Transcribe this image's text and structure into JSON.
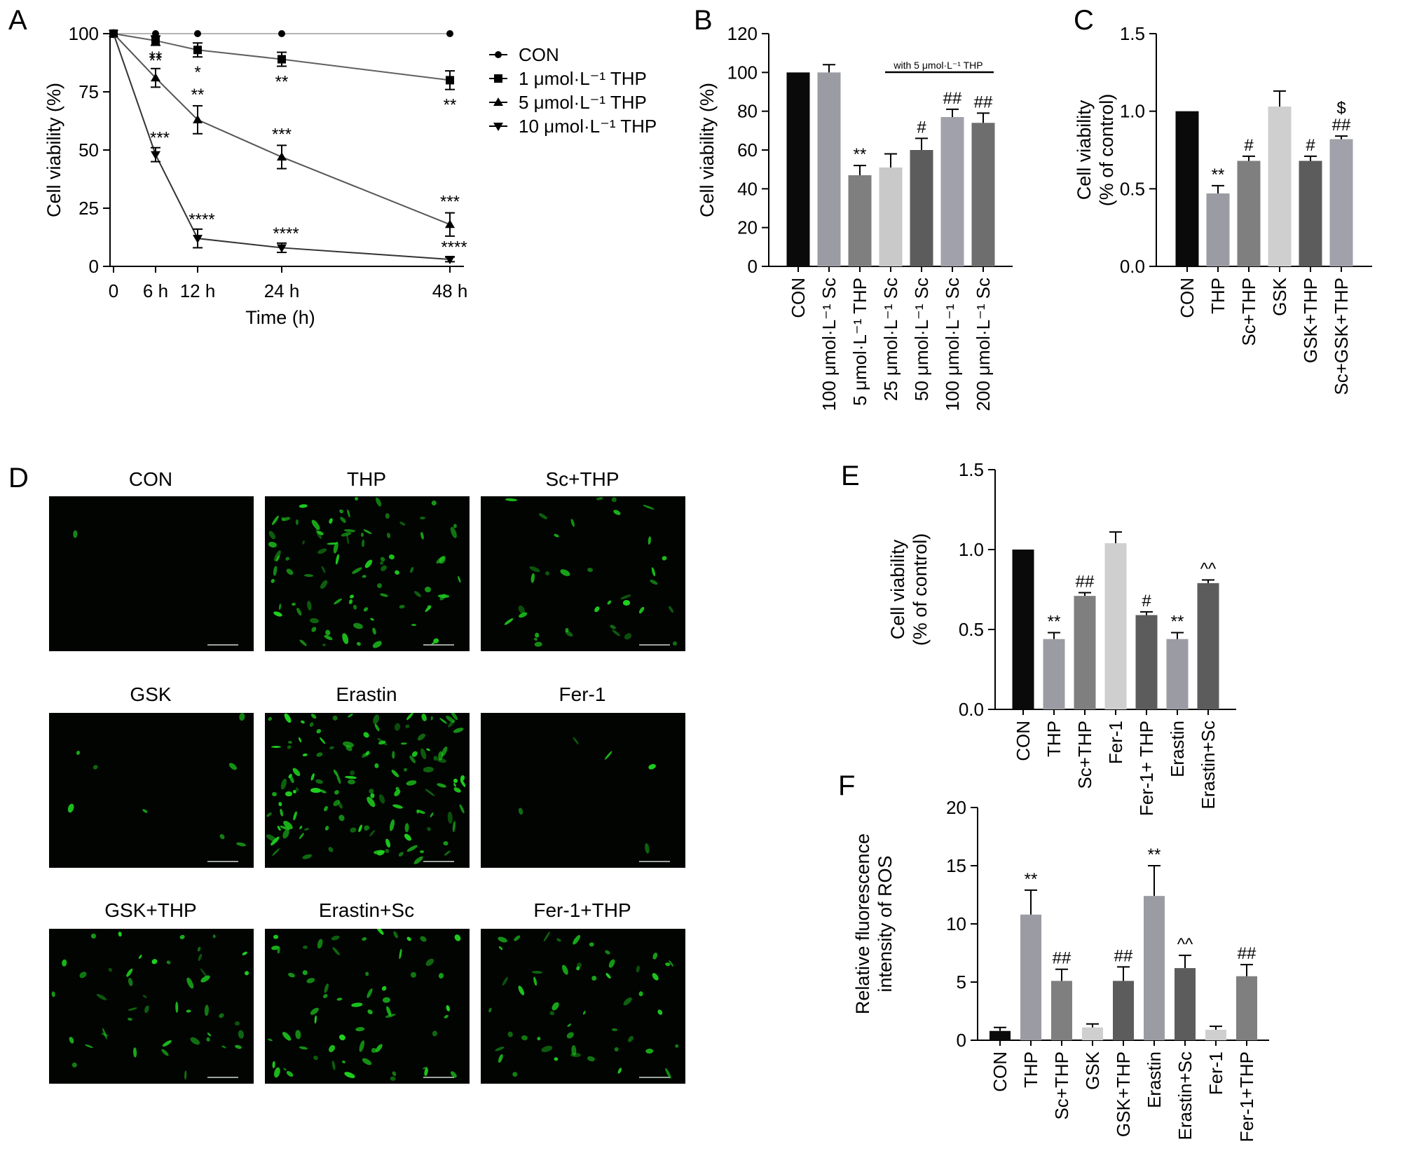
{
  "colors": {
    "axis": "#000000",
    "green_cell": "#1fd21f",
    "micro_bg": "#010401"
  },
  "chart_data": [
    {
      "id": "A",
      "panel_label": "A",
      "type": "line",
      "xlabel": "Time (h)",
      "ylabel": "Cell viability (%)",
      "x": [
        0,
        6,
        12,
        24,
        48
      ],
      "xticklabels": [
        "0",
        "6 h",
        "12 h",
        "24 h",
        "48 h"
      ],
      "ylim": [
        0,
        100
      ],
      "yticks": [
        0,
        25,
        50,
        75,
        100
      ],
      "series": [
        {
          "name": "CON",
          "marker": "circle",
          "values": [
            100,
            100,
            100,
            100,
            100
          ],
          "err": [
            0,
            0,
            0,
            0,
            0
          ],
          "sig": [
            "",
            "",
            "",
            "",
            ""
          ]
        },
        {
          "name": "1 μmol·L⁻¹ THP",
          "marker": "square",
          "values": [
            100,
            97,
            93,
            89,
            80
          ],
          "err": [
            0,
            2,
            3,
            3,
            4
          ],
          "sig": [
            "",
            "**",
            "*",
            "**",
            "**"
          ]
        },
        {
          "name": "5 μmol·L⁻¹ THP",
          "marker": "triangle-up",
          "values": [
            100,
            81,
            63,
            47,
            18
          ],
          "err": [
            0,
            4,
            6,
            5,
            5
          ],
          "sig": [
            "",
            "**",
            "**",
            "***",
            "***"
          ]
        },
        {
          "name": "10 μmol·L⁻¹ THP",
          "marker": "triangle-down",
          "values": [
            100,
            48,
            12,
            8,
            3
          ],
          "err": [
            0,
            3,
            4,
            2,
            1
          ],
          "sig": [
            "",
            "***",
            "****",
            "****",
            "****"
          ]
        }
      ]
    },
    {
      "id": "B",
      "panel_label": "B",
      "type": "bar",
      "ylabel": "Cell viability (%)",
      "ylim": [
        0,
        120
      ],
      "yticks": [
        0,
        20,
        40,
        60,
        80,
        100,
        120
      ],
      "categories": [
        "CON",
        "100 μmol·L⁻¹ Sc",
        "5 μmol·L⁻¹ THP",
        "25 μmol·L⁻¹ Sc",
        "50 μmol·L⁻¹ Sc",
        "100 μmol·L⁻¹ Sc",
        "200 μmol·L⁻¹ Sc"
      ],
      "values": [
        100,
        100,
        47,
        51,
        60,
        77,
        74
      ],
      "err": [
        0,
        4,
        5,
        7,
        6,
        4,
        5
      ],
      "sig": [
        "",
        "",
        "**",
        "",
        "#",
        "##",
        "##"
      ],
      "bar_colors": [
        "#0a0a0a",
        "#9b9ba3",
        "#7f7f7f",
        "#c9c9c9",
        "#5c5c5c",
        "#a1a1ab",
        "#6e6e6e"
      ],
      "annotation": "with 5 μmol·L⁻¹ THP"
    },
    {
      "id": "C",
      "panel_label": "C",
      "type": "bar",
      "ylabel": "Cell viability",
      "ylabel2": "(% of control)",
      "ylim": [
        0,
        1.5
      ],
      "yticks": [
        0.0,
        0.5,
        1.0,
        1.5
      ],
      "categories": [
        "CON",
        "THP",
        "Sc+THP",
        "GSK",
        "GSK+THP",
        "Sc+GSK+THP"
      ],
      "values": [
        1.0,
        0.47,
        0.68,
        1.03,
        0.68,
        0.82
      ],
      "err": [
        0,
        0.05,
        0.03,
        0.1,
        0.03,
        0.02
      ],
      "sig": [
        "",
        "**",
        "#",
        "",
        "#",
        "##"
      ],
      "sig2": [
        "",
        "",
        "",
        "",
        "",
        "$"
      ],
      "bar_colors": [
        "#0a0a0a",
        "#9b9ba3",
        "#7f7f7f",
        "#cfcfcf",
        "#5c5c5c",
        "#a1a1ab"
      ]
    },
    {
      "id": "E",
      "panel_label": "E",
      "type": "bar",
      "ylabel": "Cell viability",
      "ylabel2": "(% of control)",
      "ylim": [
        0,
        1.5
      ],
      "yticks": [
        0.0,
        0.5,
        1.0,
        1.5
      ],
      "categories": [
        "CON",
        "THP",
        "Sc+THP",
        "Fer-1",
        "Fer-1+ THP",
        "Erastin",
        "Erastin+Sc"
      ],
      "values": [
        1.0,
        0.44,
        0.71,
        1.04,
        0.59,
        0.44,
        0.79
      ],
      "err": [
        0,
        0.04,
        0.02,
        0.07,
        0.02,
        0.04,
        0.02
      ],
      "sig": [
        "",
        "**",
        "##",
        "",
        "#",
        "**",
        "^^"
      ],
      "bar_colors": [
        "#0a0a0a",
        "#9b9ba3",
        "#7f7f7f",
        "#cfcfcf",
        "#5c5c5c",
        "#9b9ba3",
        "#5c5c5c"
      ]
    },
    {
      "id": "F",
      "panel_label": "F",
      "type": "bar",
      "ylabel": "Relative fluorescence",
      "ylabel2": "intensity of ROS",
      "ylim": [
        0,
        20
      ],
      "yticks": [
        0,
        5,
        10,
        15,
        20
      ],
      "categories": [
        "CON",
        "THP",
        "Sc+THP",
        "GSK",
        "GSK+THP",
        "Erastin",
        "Erastin+Sc",
        "Fer-1",
        "Fer-1+THP"
      ],
      "values": [
        0.8,
        10.8,
        5.1,
        1.1,
        5.1,
        12.4,
        6.2,
        0.9,
        5.5
      ],
      "err": [
        0.3,
        2.1,
        1.0,
        0.3,
        1.2,
        2.6,
        1.1,
        0.3,
        1.0
      ],
      "sig": [
        "",
        "**",
        "##",
        "",
        "##",
        "**",
        "^^",
        "",
        "##"
      ],
      "bar_colors": [
        "#0a0a0a",
        "#9b9ba3",
        "#7f7f7f",
        "#cfcfcf",
        "#5c5c5c",
        "#9b9ba3",
        "#5c5c5c",
        "#cfcfcf",
        "#7f7f7f"
      ]
    }
  ],
  "panel_D": {
    "label": "D",
    "images": [
      {
        "title": "CON",
        "cells": 1
      },
      {
        "title": "THP",
        "cells": 90
      },
      {
        "title": "Sc+THP",
        "cells": 35
      },
      {
        "title": "GSK",
        "cells": 8
      },
      {
        "title": "Erastin",
        "cells": 130
      },
      {
        "title": "Fer-1",
        "cells": 5
      },
      {
        "title": "GSK+THP",
        "cells": 45
      },
      {
        "title": "Erastin+Sc",
        "cells": 60
      },
      {
        "title": "Fer-1+THP",
        "cells": 50
      }
    ]
  }
}
